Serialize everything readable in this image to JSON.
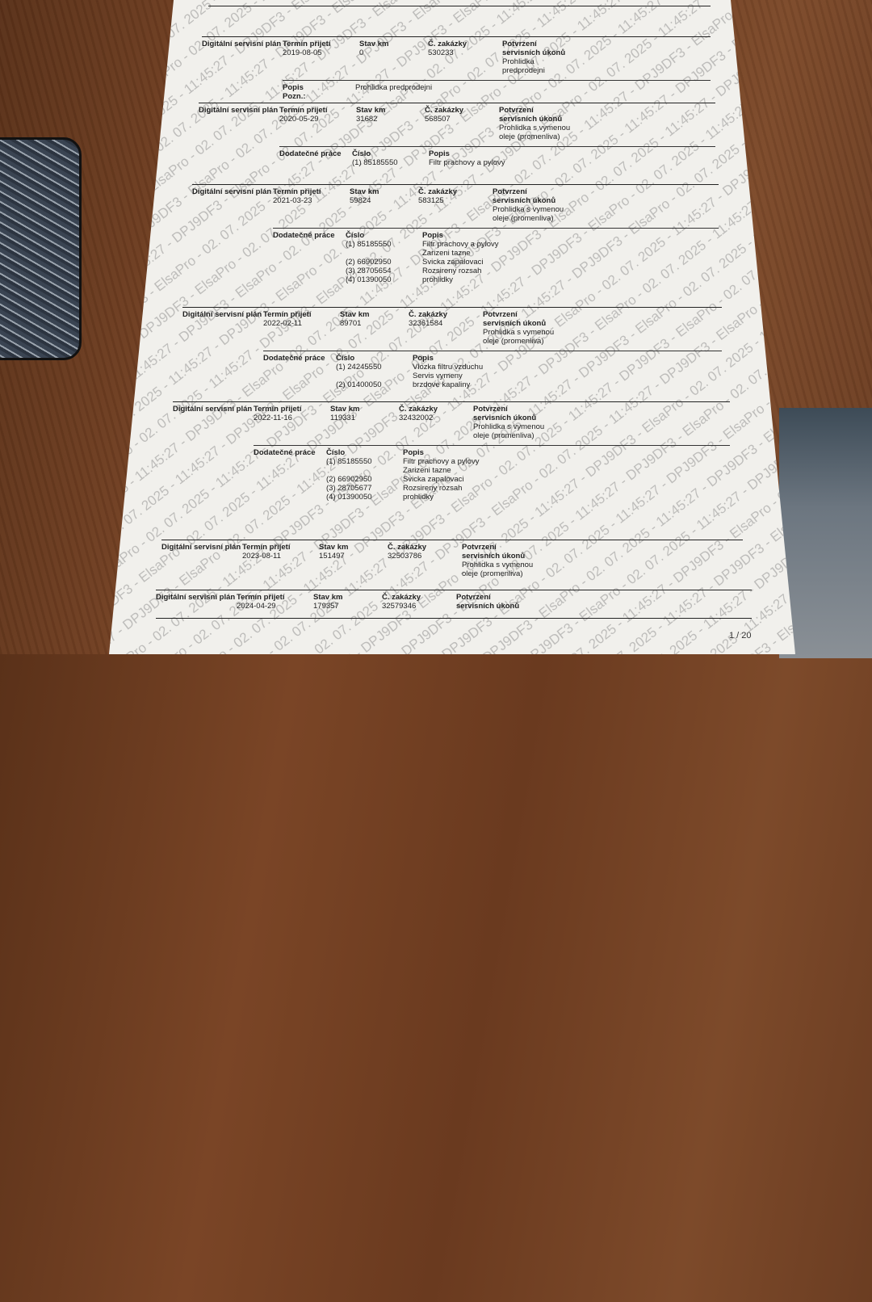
{
  "watermark": "11:45:27 - DPJ9DF3 - ElsaPro - 02. 07. 2025",
  "page_number": "1 / 20",
  "labels": {
    "plan": "Digitální servisní plán",
    "termin": "Termín přijetí",
    "km": "Stav km",
    "zakazka": "Č. zakázky",
    "potvrzeni": "Potvrzení servisních úkonů",
    "dodatecne": "Dodatečné práce",
    "cislo": "Číslo",
    "popis": "Popis",
    "pozn": "Pozn.:"
  },
  "records": [
    {
      "termin": "2019-08-05",
      "km": "0",
      "zakazka": "530233",
      "potvrzeni": "Prohlidka predprodejni",
      "popis": "Prohlidka predprodejni"
    },
    {
      "termin": "2020-05-29",
      "km": "31682",
      "zakazka": "568507",
      "potvrzeni": "Prohlidka s vymenou oleje (promenliva)",
      "items": [
        {
          "cislo": "(1) 85185550",
          "popis": "Filtr prachovy a pylovy"
        }
      ]
    },
    {
      "termin": "2021-03-23",
      "km": "59824",
      "zakazka": "583125",
      "potvrzeni": "Prohlidka s vymenou oleje (promenliva)",
      "items": [
        {
          "cislo": "(1) 85185550",
          "popis": "Filtr prachovy a pylovy"
        },
        {
          "cislo": "(2) 66902950",
          "popis": "Zarizeni tazne"
        },
        {
          "cislo": "(3) 28705654",
          "popis": "Svicka zapalovaci"
        },
        {
          "cislo": "(4) 01390050",
          "popis": "Rozsireny rozsah prohlidky"
        }
      ]
    },
    {
      "termin": "2022-02-11",
      "km": "89701",
      "zakazka": "32361584",
      "potvrzeni": "Prohlidka s vymenou oleje (promenliva)",
      "items": [
        {
          "cislo": "(1) 24245550",
          "popis": "Vlozka filtru vzduchu"
        },
        {
          "cislo": "(2) 01400050",
          "popis": "Servis vymeny brzdove kapaliny"
        }
      ]
    },
    {
      "termin": "2022-11-16",
      "km": "119331",
      "zakazka": "32432002",
      "potvrzeni": "Prohlidka s vymenou oleje (promenliva)",
      "items": [
        {
          "cislo": "(1) 85185550",
          "popis": "Filtr prachovy a pylovy"
        },
        {
          "cislo": "(2) 66902950",
          "popis": "Zarizeni tazne"
        },
        {
          "cislo": "(3) 28705677",
          "popis": "Svicka zapalovaci"
        },
        {
          "cislo": "(4) 01390050",
          "popis": "Rozsireny rozsah prohlidky"
        }
      ]
    },
    {
      "termin": "2023-08-11",
      "km": "151497",
      "zakazka": "32503786",
      "potvrzeni": "Prohlidka s vymenou oleje (promenliva)"
    },
    {
      "termin": "2024-04-29",
      "km": "179357",
      "zakazka": "32579346",
      "potvrzeni": ""
    }
  ]
}
